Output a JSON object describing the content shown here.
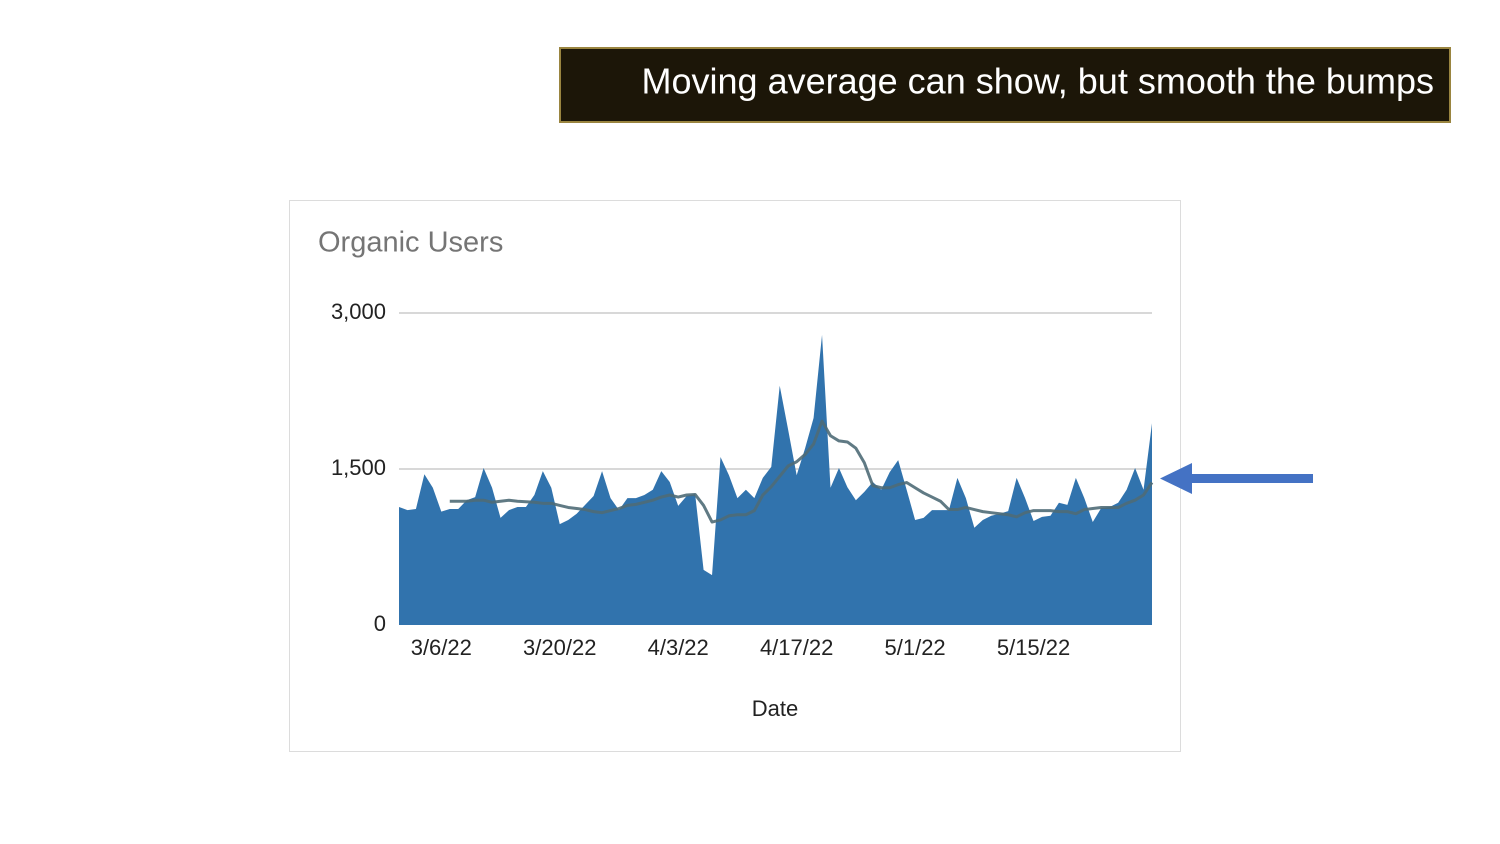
{
  "slide_title": "Moving average can show, but smooth the bumps",
  "chart_data": {
    "type": "area",
    "title": "Organic Users",
    "x_label": "Date",
    "x": [
      "3/1/22",
      "3/2/22",
      "3/3/22",
      "3/4/22",
      "3/5/22",
      "3/6/22",
      "3/7/22",
      "3/8/22",
      "3/9/22",
      "3/10/22",
      "3/11/22",
      "3/12/22",
      "3/13/22",
      "3/14/22",
      "3/15/22",
      "3/16/22",
      "3/17/22",
      "3/18/22",
      "3/19/22",
      "3/20/22",
      "3/21/22",
      "3/22/22",
      "3/23/22",
      "3/24/22",
      "3/25/22",
      "3/26/22",
      "3/27/22",
      "3/28/22",
      "3/29/22",
      "3/30/22",
      "3/31/22",
      "4/1/22",
      "4/2/22",
      "4/3/22",
      "4/4/22",
      "4/5/22",
      "4/6/22",
      "4/7/22",
      "4/8/22",
      "4/9/22",
      "4/10/22",
      "4/11/22",
      "4/12/22",
      "4/13/22",
      "4/14/22",
      "4/15/22",
      "4/16/22",
      "4/17/22",
      "4/18/22",
      "4/19/22",
      "4/20/22",
      "4/21/22",
      "4/22/22",
      "4/23/22",
      "4/24/22",
      "4/25/22",
      "4/26/22",
      "4/27/22",
      "4/28/22",
      "4/29/22",
      "4/30/22",
      "5/1/22",
      "5/2/22",
      "5/3/22",
      "5/4/22",
      "5/5/22",
      "5/6/22",
      "5/7/22",
      "5/8/22",
      "5/9/22",
      "5/10/22",
      "5/11/22",
      "5/12/22",
      "5/13/22",
      "5/14/22",
      "5/15/22",
      "5/16/22",
      "5/17/22",
      "5/18/22",
      "5/19/22",
      "5/20/22",
      "5/21/22",
      "5/22/22",
      "5/23/22",
      "5/24/22",
      "5/25/22",
      "5/26/22",
      "5/27/22",
      "5/28/22",
      "5/29/22"
    ],
    "xticks": [
      "3/6/22",
      "3/20/22",
      "4/3/22",
      "4/17/22",
      "5/1/22",
      "5/15/22"
    ],
    "series": [
      {
        "type": "area",
        "color": "#3173ad",
        "values": [
          1135,
          1105,
          1115,
          1450,
          1320,
          1090,
          1115,
          1115,
          1200,
          1230,
          1510,
          1320,
          1030,
          1105,
          1135,
          1135,
          1250,
          1480,
          1320,
          970,
          1010,
          1070,
          1155,
          1240,
          1480,
          1220,
          1105,
          1220,
          1220,
          1250,
          1300,
          1480,
          1375,
          1145,
          1240,
          1260,
          530,
          480,
          1615,
          1440,
          1220,
          1300,
          1220,
          1415,
          1520,
          2300,
          1875,
          1440,
          1700,
          1990,
          2790,
          1320,
          1510,
          1325,
          1200,
          1280,
          1375,
          1300,
          1470,
          1585,
          1300,
          1010,
          1030,
          1105,
          1105,
          1105,
          1415,
          1220,
          935,
          1010,
          1050,
          1070,
          1095,
          1415,
          1220,
          1000,
          1040,
          1050,
          1175,
          1155,
          1415,
          1220,
          990,
          1125,
          1135,
          1175,
          1300,
          1510,
          1300,
          1940
        ]
      },
      {
        "type": "line",
        "color": "#4f6b77",
        "values": [
          null,
          null,
          null,
          null,
          null,
          null,
          1190,
          1190,
          1190,
          1200,
          1200,
          1180,
          1190,
          1200,
          1190,
          1185,
          1180,
          1170,
          1170,
          1150,
          1130,
          1120,
          1110,
          1090,
          1080,
          1100,
          1120,
          1150,
          1160,
          1180,
          1200,
          1230,
          1250,
          1230,
          1250,
          1255,
          1150,
          990,
          1010,
          1050,
          1060,
          1060,
          1100,
          1250,
          1330,
          1430,
          1530,
          1570,
          1640,
          1740,
          1960,
          1820,
          1770,
          1760,
          1700,
          1560,
          1340,
          1320,
          1320,
          1350,
          1370,
          1320,
          1270,
          1230,
          1190,
          1110,
          1110,
          1130,
          1110,
          1090,
          1080,
          1070,
          1060,
          1040,
          1080,
          1100,
          1100,
          1100,
          1090,
          1090,
          1070,
          1110,
          1120,
          1130,
          1130,
          1130,
          1170,
          1200,
          1250,
          1370
        ]
      }
    ],
    "ylim": [
      0,
      3000
    ],
    "yticks": [
      0,
      {
        "value": 1500,
        "label": "1,500"
      },
      {
        "value": 3000,
        "label": "3,000"
      }
    ],
    "grid": true
  }
}
